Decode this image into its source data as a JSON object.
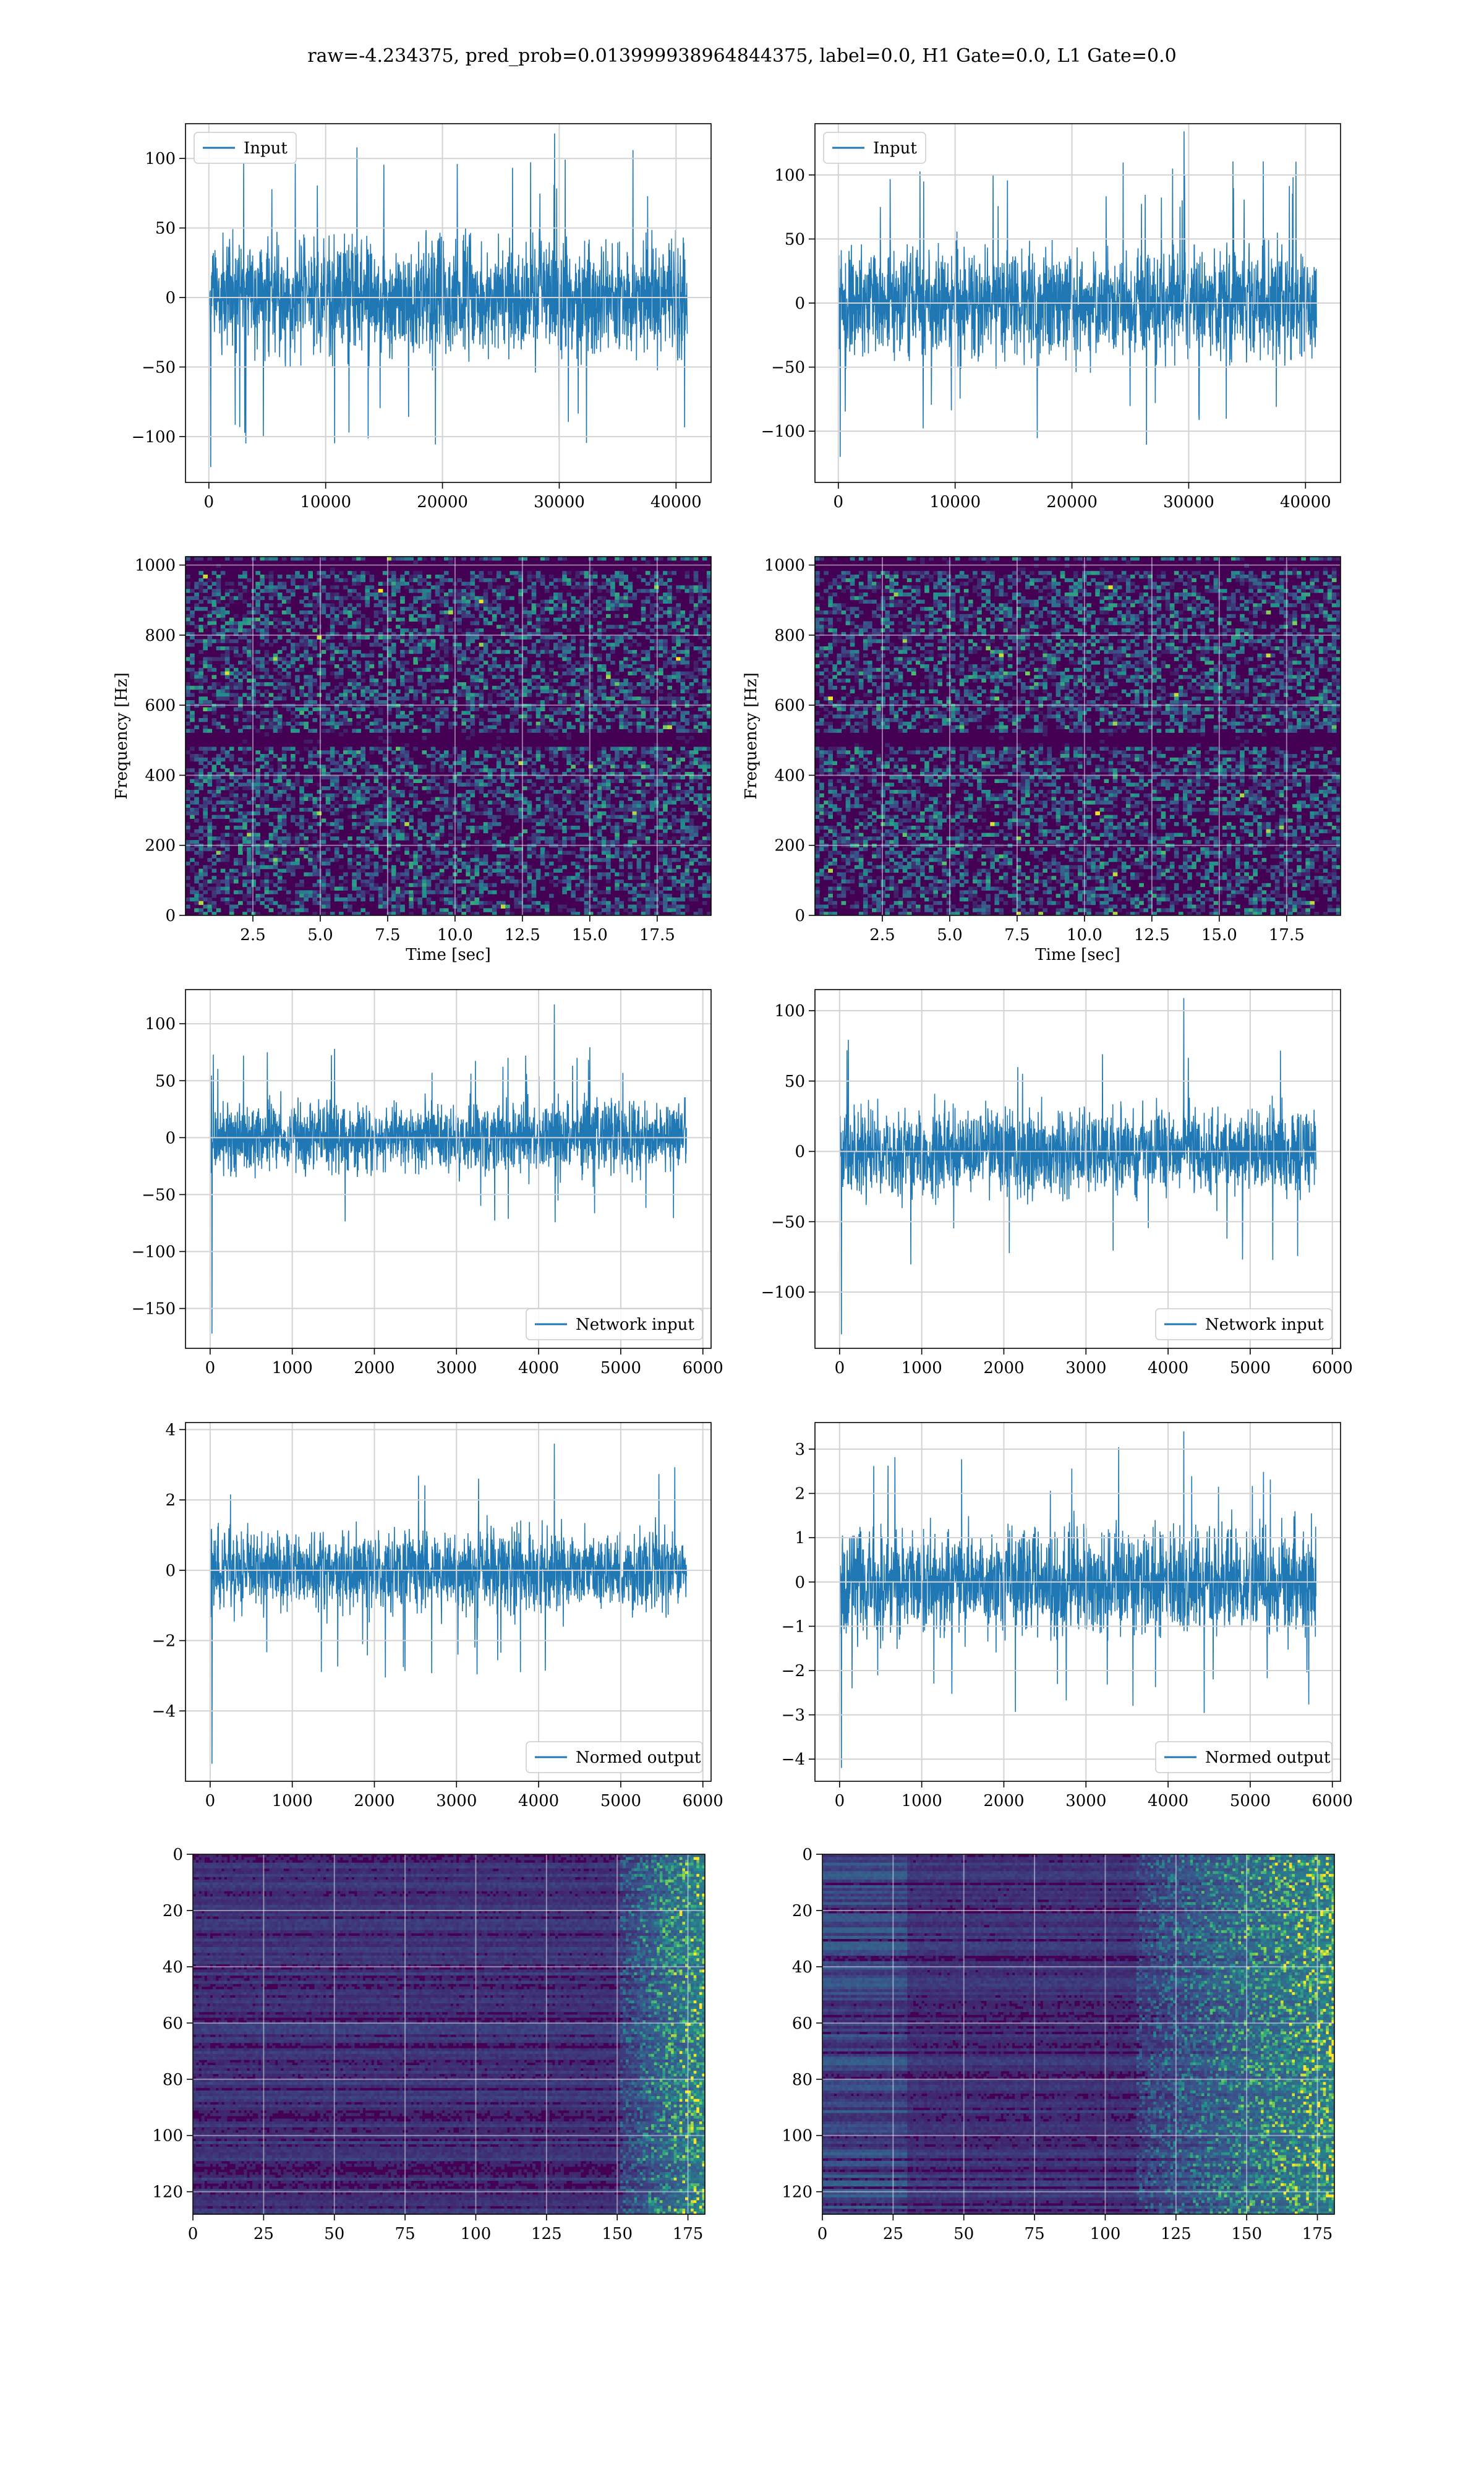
{
  "figure": {
    "suptitle": "raw=-4.234375, pred_prob=0.013999938964844375, label=0.0, H1 Gate=0.0, L1 Gate=0.0",
    "colors": {
      "series": "#1f77b4",
      "grid": "#d3d3d3",
      "viridis_low": "#440154",
      "viridis_mid": "#21918c",
      "viridis_high": "#fde725"
    }
  },
  "chart_data": [
    {
      "type": "line",
      "panel": "row1-left",
      "legend": [
        "Input"
      ],
      "legend_loc": "upper-left",
      "series": [
        {
          "name": "Input",
          "n_points": 40960,
          "center": 0,
          "typical_amplitude": 60,
          "min": -122,
          "max": 118
        }
      ],
      "xlim": [
        -2000,
        43000
      ],
      "ylim": [
        -133,
        125
      ],
      "xticks": [
        0,
        10000,
        20000,
        30000,
        40000
      ],
      "xtick_labels": [
        "0",
        "10000",
        "20000",
        "30000",
        "40000"
      ],
      "yticks": [
        -100,
        -50,
        0,
        50,
        100
      ],
      "ytick_labels": [
        "−100",
        "−50",
        "0",
        "50",
        "100"
      ],
      "xlabel": "",
      "ylabel": "",
      "grid": true
    },
    {
      "type": "line",
      "panel": "row1-right",
      "legend": [
        "Input"
      ],
      "legend_loc": "upper-left",
      "series": [
        {
          "name": "Input",
          "n_points": 40960,
          "center": 0,
          "typical_amplitude": 62,
          "min": -120,
          "max": 134
        }
      ],
      "xlim": [
        -2000,
        43000
      ],
      "ylim": [
        -140,
        140
      ],
      "xticks": [
        0,
        10000,
        20000,
        30000,
        40000
      ],
      "xtick_labels": [
        "0",
        "10000",
        "20000",
        "30000",
        "40000"
      ],
      "yticks": [
        -100,
        -50,
        0,
        50,
        100
      ],
      "ytick_labels": [
        "−100",
        "−50",
        "0",
        "50",
        "100"
      ],
      "xlabel": "",
      "ylabel": "",
      "grid": true
    },
    {
      "type": "heatmap",
      "panel": "row2-left",
      "description_kind": "spectrogram",
      "xlim": [
        0,
        19.5
      ],
      "ylim": [
        0,
        1024
      ],
      "xticks": [
        2.5,
        5.0,
        7.5,
        10.0,
        12.5,
        15.0,
        17.5
      ],
      "xtick_labels": [
        "2.5",
        "5.0",
        "7.5",
        "10.0",
        "12.5",
        "15.0",
        "17.5"
      ],
      "yticks": [
        0,
        200,
        400,
        600,
        800,
        1000
      ],
      "ytick_labels": [
        "0",
        "200",
        "400",
        "600",
        "800",
        "1000"
      ],
      "xlabel": "Time [sec]",
      "ylabel": "Frequency [Hz]",
      "grid": true,
      "dark_bands_hz": [
        500,
        1000
      ],
      "colormap": "viridis"
    },
    {
      "type": "heatmap",
      "panel": "row2-right",
      "description_kind": "spectrogram",
      "xlim": [
        0,
        19.5
      ],
      "ylim": [
        0,
        1024
      ],
      "xticks": [
        2.5,
        5.0,
        7.5,
        10.0,
        12.5,
        15.0,
        17.5
      ],
      "xtick_labels": [
        "2.5",
        "5.0",
        "7.5",
        "10.0",
        "12.5",
        "15.0",
        "17.5"
      ],
      "yticks": [
        0,
        200,
        400,
        600,
        800,
        1000
      ],
      "ytick_labels": [
        "0",
        "200",
        "400",
        "600",
        "800",
        "1000"
      ],
      "xlabel": "Time [sec]",
      "ylabel": "Frequency [Hz]",
      "grid": true,
      "dark_bands_hz": [
        500,
        1000
      ],
      "colormap": "viridis"
    },
    {
      "type": "line",
      "panel": "row3-left",
      "legend": [
        "Network input"
      ],
      "legend_loc": "lower-right",
      "series": [
        {
          "name": "Network input",
          "n_points": 5800,
          "center": 0,
          "typical_amplitude": 45,
          "min": -172,
          "max": 117
        }
      ],
      "xlim": [
        -300,
        6100
      ],
      "ylim": [
        -185,
        130
      ],
      "xticks": [
        0,
        1000,
        2000,
        3000,
        4000,
        5000,
        6000
      ],
      "xtick_labels": [
        "0",
        "1000",
        "2000",
        "3000",
        "4000",
        "5000",
        "6000"
      ],
      "yticks": [
        -150,
        -100,
        -50,
        0,
        50,
        100
      ],
      "ytick_labels": [
        "−150",
        "−100",
        "−50",
        "0",
        "50",
        "100"
      ],
      "xlabel": "",
      "ylabel": "",
      "grid": true
    },
    {
      "type": "line",
      "panel": "row3-right",
      "legend": [
        "Network input"
      ],
      "legend_loc": "lower-right",
      "series": [
        {
          "name": "Network input",
          "n_points": 5800,
          "center": 0,
          "typical_amplitude": 45,
          "min": -130,
          "max": 109
        }
      ],
      "xlim": [
        -300,
        6100
      ],
      "ylim": [
        -140,
        115
      ],
      "xticks": [
        0,
        1000,
        2000,
        3000,
        4000,
        5000,
        6000
      ],
      "xtick_labels": [
        "0",
        "1000",
        "2000",
        "3000",
        "4000",
        "5000",
        "6000"
      ],
      "yticks": [
        -100,
        -50,
        0,
        50,
        100
      ],
      "ytick_labels": [
        "−100",
        "−50",
        "0",
        "50",
        "100"
      ],
      "xlabel": "",
      "ylabel": "",
      "grid": true
    },
    {
      "type": "line",
      "panel": "row4-left",
      "legend": [
        "Normed output"
      ],
      "legend_loc": "lower-right",
      "series": [
        {
          "name": "Normed output",
          "n_points": 5800,
          "center": 0,
          "typical_amplitude": 1.7,
          "min": -5.5,
          "max": 3.6
        }
      ],
      "xlim": [
        -300,
        6100
      ],
      "ylim": [
        -6,
        4.2
      ],
      "xticks": [
        0,
        1000,
        2000,
        3000,
        4000,
        5000,
        6000
      ],
      "xtick_labels": [
        "0",
        "1000",
        "2000",
        "3000",
        "4000",
        "5000",
        "6000"
      ],
      "yticks": [
        -4,
        -2,
        0,
        2,
        4
      ],
      "ytick_labels": [
        "−4",
        "−2",
        "0",
        "2",
        "4"
      ],
      "xlabel": "",
      "ylabel": "",
      "grid": true
    },
    {
      "type": "line",
      "panel": "row4-right",
      "legend": [
        "Normed output"
      ],
      "legend_loc": "lower-right",
      "series": [
        {
          "name": "Normed output",
          "n_points": 5800,
          "center": 0,
          "typical_amplitude": 1.7,
          "min": -4.2,
          "max": 3.4
        }
      ],
      "xlim": [
        -300,
        6100
      ],
      "ylim": [
        -4.5,
        3.6
      ],
      "xticks": [
        0,
        1000,
        2000,
        3000,
        4000,
        5000,
        6000
      ],
      "xtick_labels": [
        "0",
        "1000",
        "2000",
        "3000",
        "4000",
        "5000",
        "6000"
      ],
      "yticks": [
        -4,
        -3,
        -2,
        -1,
        0,
        1,
        2,
        3
      ],
      "ytick_labels": [
        "−4",
        "−3",
        "−2",
        "−1",
        "0",
        "1",
        "2",
        "3"
      ],
      "xlabel": "",
      "ylabel": "",
      "grid": true
    },
    {
      "type": "heatmap",
      "panel": "row5-left",
      "description_kind": "feature-map",
      "xlim": [
        0,
        181
      ],
      "ylim": [
        128,
        0
      ],
      "xticks": [
        0,
        25,
        50,
        75,
        100,
        125,
        150,
        175
      ],
      "xtick_labels": [
        "0",
        "25",
        "50",
        "75",
        "100",
        "125",
        "150",
        "175"
      ],
      "yticks": [
        0,
        20,
        40,
        60,
        80,
        100,
        120
      ],
      "ytick_labels": [
        "0",
        "20",
        "40",
        "60",
        "80",
        "100",
        "120"
      ],
      "xlabel": "",
      "ylabel": "",
      "grid": true,
      "colormap": "viridis",
      "activity_onset_col": 150
    },
    {
      "type": "heatmap",
      "panel": "row5-right",
      "description_kind": "feature-map",
      "xlim": [
        0,
        181
      ],
      "ylim": [
        128,
        0
      ],
      "xticks": [
        0,
        25,
        50,
        75,
        100,
        125,
        150,
        175
      ],
      "xtick_labels": [
        "0",
        "25",
        "50",
        "75",
        "100",
        "125",
        "150",
        "175"
      ],
      "yticks": [
        0,
        20,
        40,
        60,
        80,
        100,
        120
      ],
      "ytick_labels": [
        "0",
        "20",
        "40",
        "60",
        "80",
        "100",
        "120"
      ],
      "xlabel": "",
      "ylabel": "",
      "grid": true,
      "colormap": "viridis",
      "activity_onset_col": 110
    }
  ]
}
